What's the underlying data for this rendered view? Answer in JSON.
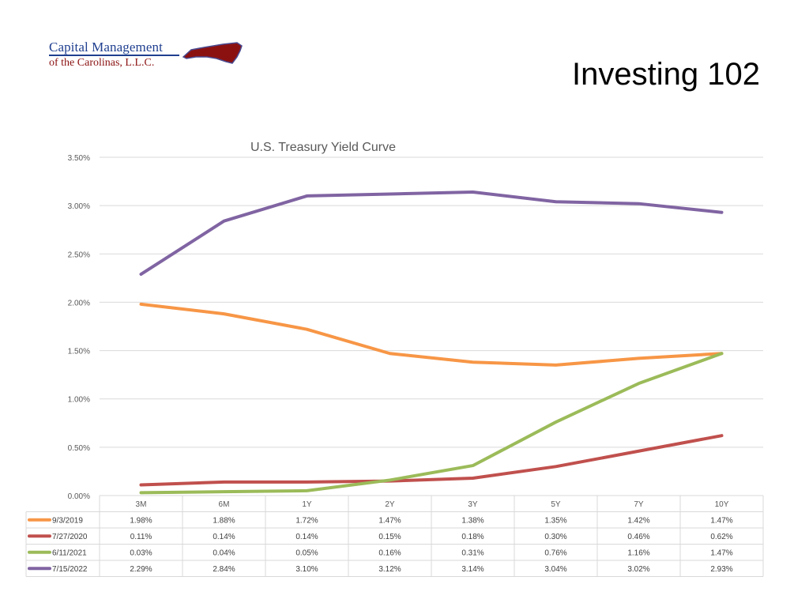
{
  "logo": {
    "line1": "Capital Management",
    "line2": "of the Carolinas, L.L.C.",
    "colors": {
      "primary": "#1f3f8f",
      "accent": "#8b1111"
    }
  },
  "slide_title": "Investing 102",
  "chart_data": {
    "type": "line",
    "title": "U.S. Treasury Yield Curve",
    "categories": [
      "3M",
      "6M",
      "1Y",
      "2Y",
      "3Y",
      "5Y",
      "7Y",
      "10Y"
    ],
    "ylim": [
      0,
      3.5
    ],
    "yticks": [
      "0.00%",
      "0.50%",
      "1.00%",
      "1.50%",
      "2.00%",
      "2.50%",
      "3.00%",
      "3.50%"
    ],
    "grid": true,
    "legend_placement": "data-table",
    "series": [
      {
        "name": "9/3/2019",
        "color": "#f79646",
        "values": [
          1.98,
          1.88,
          1.72,
          1.47,
          1.38,
          1.35,
          1.42,
          1.47
        ],
        "labels": [
          "1.98%",
          "1.88%",
          "1.72%",
          "1.47%",
          "1.38%",
          "1.35%",
          "1.42%",
          "1.47%"
        ]
      },
      {
        "name": "7/27/2020",
        "color": "#c0504d",
        "values": [
          0.11,
          0.14,
          0.14,
          0.15,
          0.18,
          0.3,
          0.46,
          0.62
        ],
        "labels": [
          "0.11%",
          "0.14%",
          "0.14%",
          "0.15%",
          "0.18%",
          "0.30%",
          "0.46%",
          "0.62%"
        ]
      },
      {
        "name": "6/11/2021",
        "color": "#9bbb59",
        "values": [
          0.03,
          0.04,
          0.05,
          0.16,
          0.31,
          0.76,
          1.16,
          1.47
        ],
        "labels": [
          "0.03%",
          "0.04%",
          "0.05%",
          "0.16%",
          "0.31%",
          "0.76%",
          "1.16%",
          "1.47%"
        ]
      },
      {
        "name": "7/15/2022",
        "color": "#8064a2",
        "values": [
          2.29,
          2.84,
          3.1,
          3.12,
          3.14,
          3.04,
          3.02,
          2.93
        ],
        "labels": [
          "2.29%",
          "2.84%",
          "3.10%",
          "3.12%",
          "3.14%",
          "3.04%",
          "3.02%",
          "2.93%"
        ]
      }
    ]
  }
}
